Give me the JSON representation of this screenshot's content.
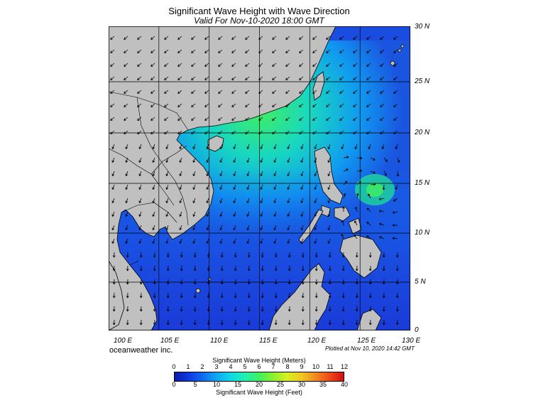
{
  "header": {
    "title": "Significant Wave Height with Wave Direction",
    "subtitle": "Valid For Nov-10-2020 18:00 GMT"
  },
  "map": {
    "lat_labels": [
      "30 N",
      "25 N",
      "20 N",
      "15 N",
      "10 N",
      "5 N",
      "0"
    ],
    "lon_labels": [
      "100 E",
      "105 E",
      "110 E",
      "115 E",
      "120 E",
      "125 E",
      "130 E"
    ],
    "land_color": "#c0c0c0",
    "ocean_low_color": "#1a3fd8",
    "ocean_high_color": "#4cf050"
  },
  "footer": {
    "credit": "oceanweather inc.",
    "plotted": "Plotted at Nov 10, 2020 14:42 GMT"
  },
  "legend": {
    "meters_title": "Significant Wave Height (Meters)",
    "feet_title": "Significant Wave Height (Feet)",
    "meters_ticks": [
      "0",
      "1",
      "2",
      "3",
      "4",
      "5",
      "6",
      "7",
      "8",
      "9",
      "10",
      "11",
      "12"
    ],
    "feet_ticks": [
      "0",
      "5",
      "10",
      "15",
      "20",
      "25",
      "30",
      "35",
      "40"
    ],
    "colors": [
      "#0a1aa8",
      "#1038e0",
      "#0f6cf0",
      "#10a8f0",
      "#10d8e8",
      "#20f0b0",
      "#40f060",
      "#8cf030",
      "#d8f020",
      "#f0c820",
      "#f08a20",
      "#f04a18",
      "#d01010"
    ]
  }
}
